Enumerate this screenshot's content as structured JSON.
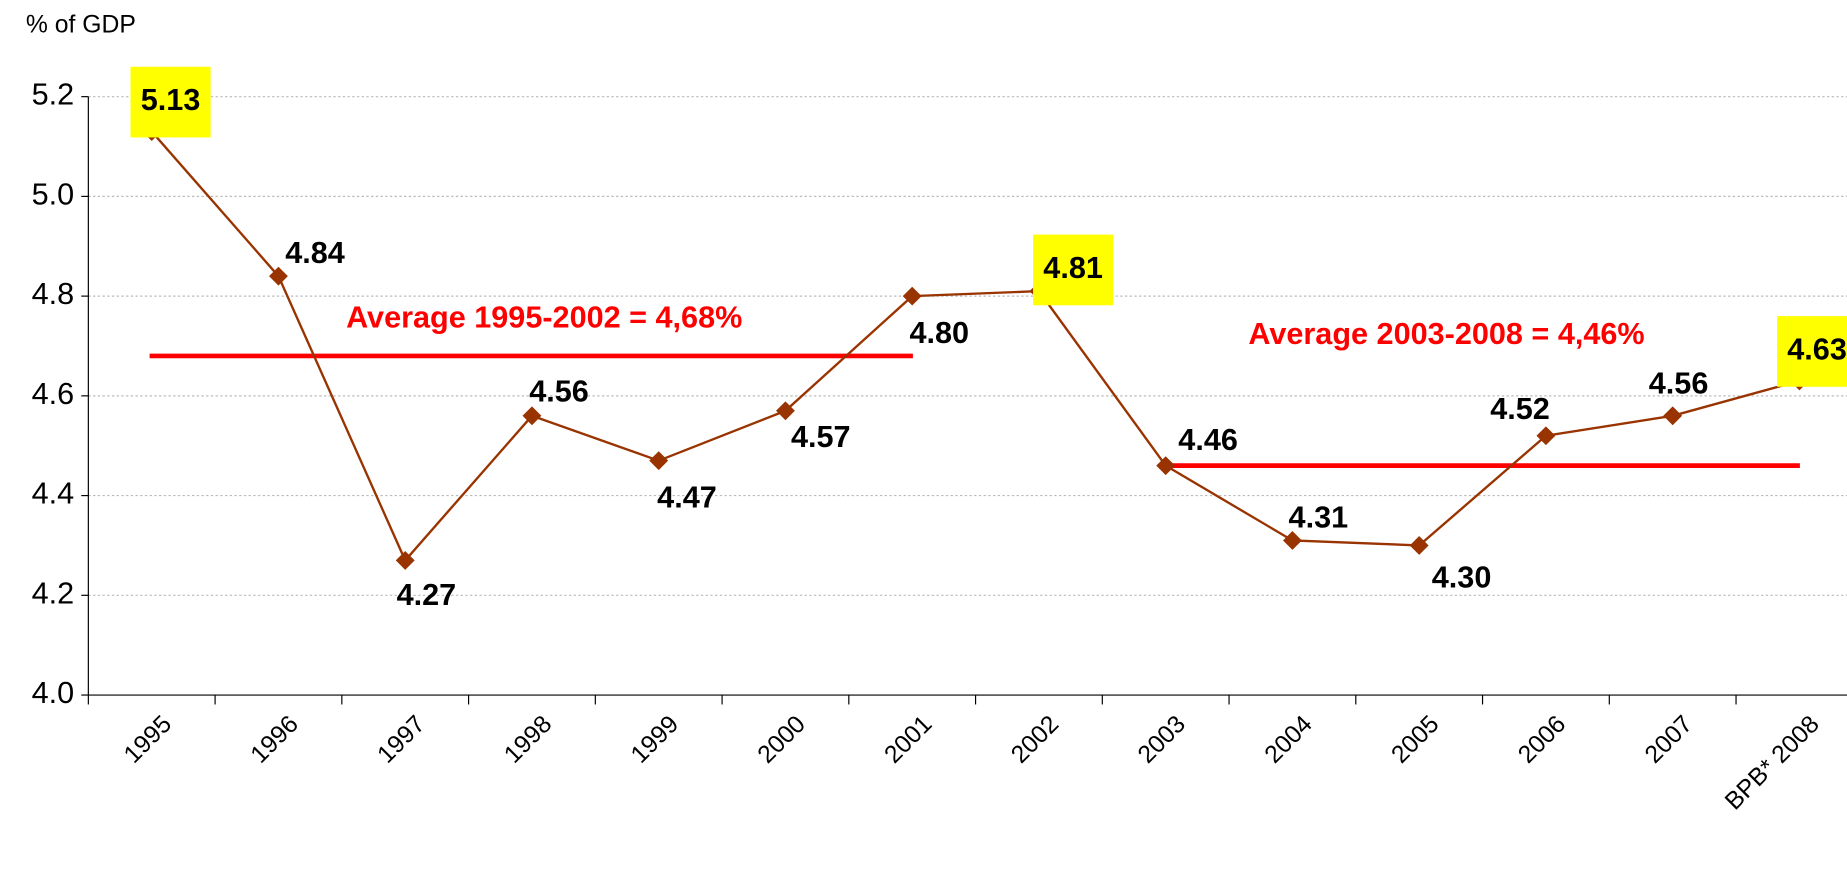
{
  "chart_data": {
    "type": "line",
    "y_axis_label": "% of GDP",
    "categories": [
      "1995",
      "1996",
      "1997",
      "1998",
      "1999",
      "2000",
      "2001",
      "2002",
      "2003",
      "2004",
      "2005",
      "2006",
      "2007",
      "BPB* 2008"
    ],
    "values": [
      5.13,
      4.84,
      4.27,
      4.56,
      4.47,
      4.57,
      4.8,
      4.81,
      4.46,
      4.31,
      4.3,
      4.52,
      4.56,
      4.63
    ],
    "value_labels": [
      "5.13",
      "4.84",
      "4.27",
      "4.56",
      "4.47",
      "4.57",
      "4.80",
      "4.81",
      "4.46",
      "4.31",
      "4.30",
      "4.52",
      "4.56",
      "4.63"
    ],
    "color": "#993300",
    "highlighted": [
      0,
      7,
      13
    ],
    "highlight_color": "#ffff00",
    "ylim": [
      4,
      5.2
    ],
    "yticks": [
      {
        "value": 4,
        "label": "4.0"
      },
      4.2,
      4.4,
      4.6,
      4.8,
      {
        "value": 5,
        "label": "5.0"
      },
      5.2
    ],
    "grid": true,
    "annotations": [
      {
        "text": "Average 1995-2002 = 4,68%",
        "value": 4.68,
        "color": "#ff0000"
      },
      {
        "text": "Average 2003-2008 = 4,46%",
        "value": 4.46,
        "color": "#ff0000"
      }
    ]
  }
}
